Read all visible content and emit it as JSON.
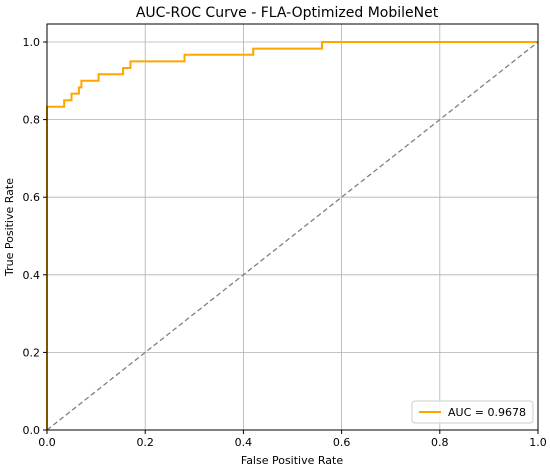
{
  "chart_data": {
    "type": "line",
    "title": "AUC-ROC Curve - FLA-Optimized MobileNet",
    "xlabel": "False Positive Rate",
    "ylabel": "True Positive Rate",
    "xlim": [
      0.0,
      1.0
    ],
    "ylim": [
      0.0,
      1.0
    ],
    "xticks": [
      "0.0",
      "0.2",
      "0.4",
      "0.6",
      "0.8",
      "1.0"
    ],
    "yticks": [
      "0.0",
      "0.2",
      "0.4",
      "0.6",
      "0.8",
      "1.0"
    ],
    "grid": true,
    "legend_position": "bottom-right",
    "series": [
      {
        "name": "AUC = 0.9678",
        "color": "#ffa500",
        "style": "solid",
        "x": [
          0.0,
          0.0,
          0.035,
          0.035,
          0.05,
          0.05,
          0.065,
          0.065,
          0.07,
          0.07,
          0.105,
          0.105,
          0.155,
          0.155,
          0.17,
          0.17,
          0.28,
          0.28,
          0.42,
          0.42,
          0.56,
          0.56,
          1.0
        ],
        "y": [
          0.0,
          0.833,
          0.833,
          0.85,
          0.85,
          0.867,
          0.867,
          0.883,
          0.883,
          0.9,
          0.9,
          0.917,
          0.917,
          0.933,
          0.933,
          0.95,
          0.95,
          0.967,
          0.967,
          0.983,
          0.983,
          1.0,
          1.0
        ]
      },
      {
        "name": "",
        "color": "#808080",
        "style": "dashed",
        "x": [
          0.0,
          1.0
        ],
        "y": [
          0.0,
          1.0
        ]
      }
    ]
  }
}
